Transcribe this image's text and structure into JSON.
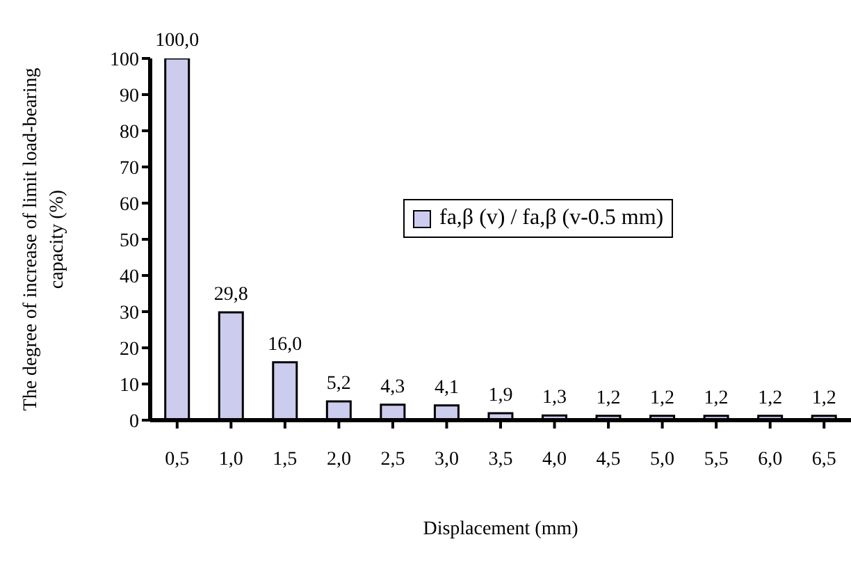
{
  "chart_data": {
    "type": "bar",
    "xlabel": "Displacement (mm)",
    "ylabel": "The degree of increase of limit load-bearing capacity (%)",
    "categories": [
      "0,5",
      "1,0",
      "1,5",
      "2,0",
      "2,5",
      "3,0",
      "3,5",
      "4,0",
      "4,5",
      "5,0",
      "5,5",
      "6,0",
      "6,5"
    ],
    "series": [
      {
        "name": "fa,β (v) / fa,β (v-0.5 mm)",
        "color": "#ccccee",
        "values": [
          100.0,
          29.8,
          16.0,
          5.2,
          4.3,
          4.1,
          1.9,
          1.3,
          1.2,
          1.2,
          1.2,
          1.2,
          1.2
        ],
        "value_labels": [
          "100,0",
          "29,8",
          "16,0",
          "5,2",
          "4,3",
          "4,1",
          "1,9",
          "1,3",
          "1,2",
          "1,2",
          "1,2",
          "1,2",
          "1,2"
        ]
      }
    ],
    "ylim": [
      0,
      100
    ],
    "yticks": [
      0,
      10,
      20,
      30,
      40,
      50,
      60,
      70,
      80,
      90,
      100
    ],
    "legend": "center",
    "grid": false
  }
}
